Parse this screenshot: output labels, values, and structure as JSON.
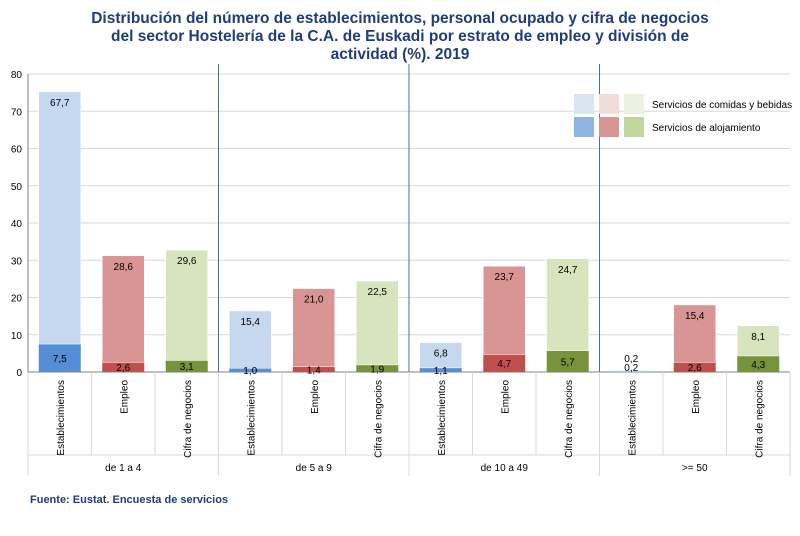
{
  "title_lines": [
    "Distribución del número de establecimientos, personal ocupado y cifra de negocios",
    "del sector Hostelería de la C.A. de Euskadi por estrato de empleo y división de",
    "actividad (%). 2019"
  ],
  "source": "Fuente: Eustat. Encuesta de servicios",
  "chart_data": {
    "type": "bar",
    "stacked": true,
    "title": "Distribución del número de establecimientos, personal ocupado y cifra de negocios del sector Hostelería de la C.A. de Euskadi por estrato de empleo y división de actividad (%). 2019",
    "ylim": [
      0,
      80
    ],
    "yticks": [
      0,
      10,
      20,
      30,
      40,
      50,
      60,
      70,
      80
    ],
    "legend_position": "top-right",
    "groups": [
      "de 1 a 4",
      "de 5 a 9",
      "de 10 a 49",
      ">= 50"
    ],
    "subcategories": [
      "Establecimientos",
      "Empleo",
      "Cifra de negocios"
    ],
    "series": [
      {
        "name": "Servicios de alojamiento",
        "position": "bottom",
        "values": [
          [
            7.5,
            2.6,
            3.1
          ],
          [
            1.0,
            1.4,
            1.9
          ],
          [
            1.1,
            4.7,
            5.7
          ],
          [
            0.2,
            2.6,
            4.3
          ]
        ],
        "labels": [
          [
            "7,5",
            "2,6",
            "3,1"
          ],
          [
            "1,0",
            "1,4",
            "1,9"
          ],
          [
            "1,1",
            "4,7",
            "5,7"
          ],
          [
            "0,2",
            "2,6",
            "4,3"
          ]
        ]
      },
      {
        "name": "Servicios de comidas y bebidas",
        "position": "top",
        "values": [
          [
            67.7,
            28.6,
            29.6
          ],
          [
            15.4,
            21.0,
            22.5
          ],
          [
            6.8,
            23.7,
            24.7
          ],
          [
            0.2,
            15.4,
            8.1
          ]
        ],
        "labels": [
          [
            "67,7",
            "28,6",
            "29,6"
          ],
          [
            "15,4",
            "21,0",
            "22,5"
          ],
          [
            "6,8",
            "23,7",
            "24,7"
          ],
          [
            "0,2",
            "15,4",
            "8,1"
          ]
        ]
      }
    ],
    "colors": {
      "light": [
        "#c6d8ef",
        "#d99594",
        "#d7e4bd"
      ],
      "dark": [
        "#558ed5",
        "#c0504d",
        "#77933c"
      ],
      "legend_light": [
        "#dbe5f1",
        "#f2dcdb",
        "#ebf1de"
      ],
      "legend_dark": [
        "#8eb4e3",
        "#d99594",
        "#c3d69b"
      ],
      "separator": "#4a6fa5",
      "grid": "#d9d9d9",
      "axis": "#808080"
    }
  }
}
